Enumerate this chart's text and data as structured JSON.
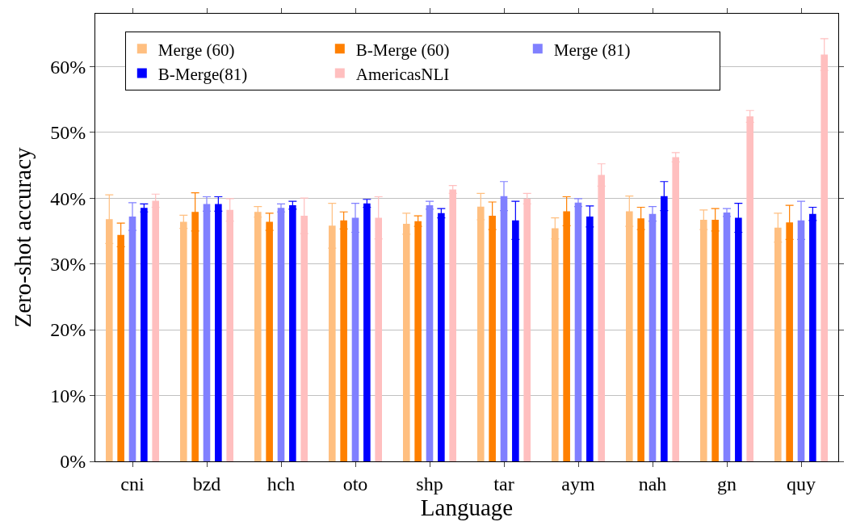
{
  "chart_data": {
    "type": "bar",
    "xlabel": "Language",
    "ylabel": "Zero-shot accuracy",
    "categories": [
      "cni",
      "bzd",
      "hch",
      "oto",
      "shp",
      "tar",
      "aym",
      "nah",
      "gn",
      "quy"
    ],
    "series": [
      {
        "name": "Merge (60)",
        "color": "#ffbf80",
        "values": [
          36.8,
          36.4,
          37.9,
          35.8,
          36.1,
          38.7,
          35.4,
          38.0,
          36.7,
          35.5
        ],
        "errors": [
          3.7,
          1.0,
          0.8,
          3.4,
          1.6,
          2.0,
          1.6,
          2.3,
          1.5,
          2.2
        ]
      },
      {
        "name": "B-Merge (60)",
        "color": "#ff8000",
        "values": [
          34.4,
          37.9,
          36.4,
          36.6,
          36.5,
          37.3,
          38.0,
          36.9,
          36.7,
          36.3
        ],
        "errors": [
          1.8,
          2.9,
          1.3,
          1.3,
          0.8,
          2.1,
          2.2,
          1.7,
          1.7,
          2.6
        ]
      },
      {
        "name": "Merge (81)",
        "color": "#8080ff",
        "values": [
          37.2,
          39.1,
          38.5,
          37.0,
          38.9,
          40.3,
          39.3,
          37.6,
          37.8,
          36.6
        ],
        "errors": [
          2.1,
          1.1,
          0.6,
          2.2,
          0.6,
          2.2,
          0.6,
          1.1,
          0.6,
          2.9
        ]
      },
      {
        "name": "B-Merge(81)",
        "color": "#0000ff",
        "values": [
          38.5,
          39.1,
          38.9,
          39.2,
          37.7,
          36.6,
          37.2,
          40.3,
          37.0,
          37.6
        ],
        "errors": [
          0.6,
          1.1,
          0.6,
          0.6,
          0.7,
          2.9,
          1.6,
          2.2,
          2.2,
          1.0
        ]
      },
      {
        "name": "AmericasNLI",
        "color": "#ffbfbf",
        "values": [
          39.6,
          38.2,
          37.3,
          37.0,
          41.3,
          39.9,
          43.5,
          46.2,
          52.4,
          61.8
        ],
        "errors": [
          1.0,
          1.7,
          2.7,
          3.2,
          0.6,
          0.8,
          1.7,
          0.7,
          0.9,
          2.4
        ]
      }
    ],
    "ylim": [
      0,
      68
    ],
    "yticks": [
      {
        "value": 0,
        "label": "0%"
      },
      {
        "value": 10,
        "label": "10%"
      },
      {
        "value": 20,
        "label": "20%"
      },
      {
        "value": 30,
        "label": "30%"
      },
      {
        "value": 40,
        "label": "40%"
      },
      {
        "value": 50,
        "label": "50%"
      },
      {
        "value": 60,
        "label": "60%"
      }
    ],
    "grid": "y",
    "legend": "top left"
  }
}
